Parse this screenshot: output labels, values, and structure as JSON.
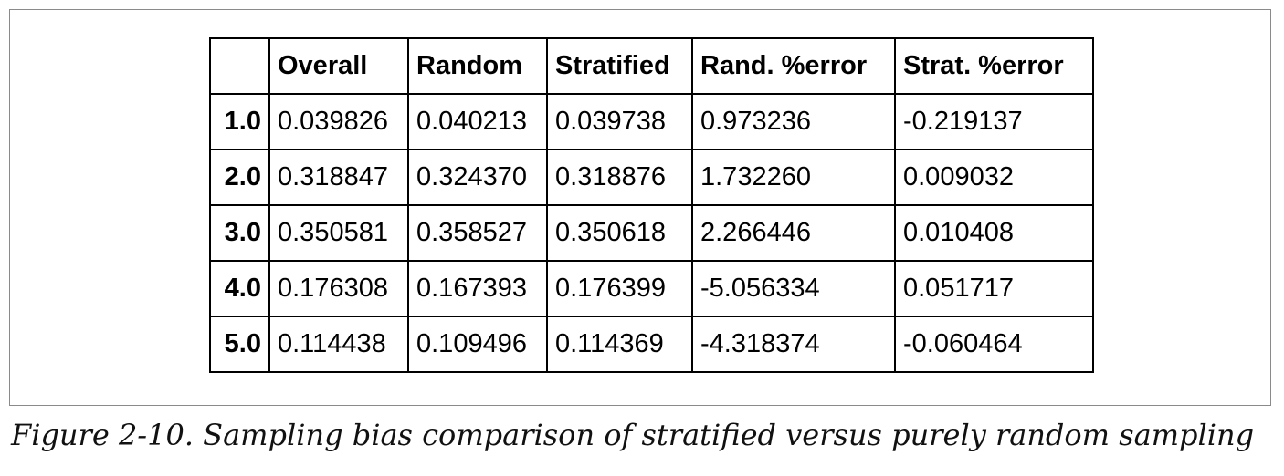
{
  "table": {
    "columns": [
      "",
      "Overall",
      "Random",
      "Stratified",
      "Rand. %error",
      "Strat. %error"
    ],
    "rows": [
      {
        "index": "1.0",
        "cells": [
          "0.039826",
          "0.040213",
          "0.039738",
          "0.973236",
          "-0.219137"
        ]
      },
      {
        "index": "2.0",
        "cells": [
          "0.318847",
          "0.324370",
          "0.318876",
          "1.732260",
          "0.009032"
        ]
      },
      {
        "index": "3.0",
        "cells": [
          "0.350581",
          "0.358527",
          "0.350618",
          "2.266446",
          "0.010408"
        ]
      },
      {
        "index": "4.0",
        "cells": [
          "0.176308",
          "0.167393",
          "0.176399",
          "-5.056334",
          "0.051717"
        ]
      },
      {
        "index": "5.0",
        "cells": [
          "0.114438",
          "0.109496",
          "0.114369",
          "-4.318374",
          "-0.060464"
        ]
      }
    ]
  },
  "caption": "Figure 2-10. Sampling bias comparison of stratified versus purely random sampling"
}
